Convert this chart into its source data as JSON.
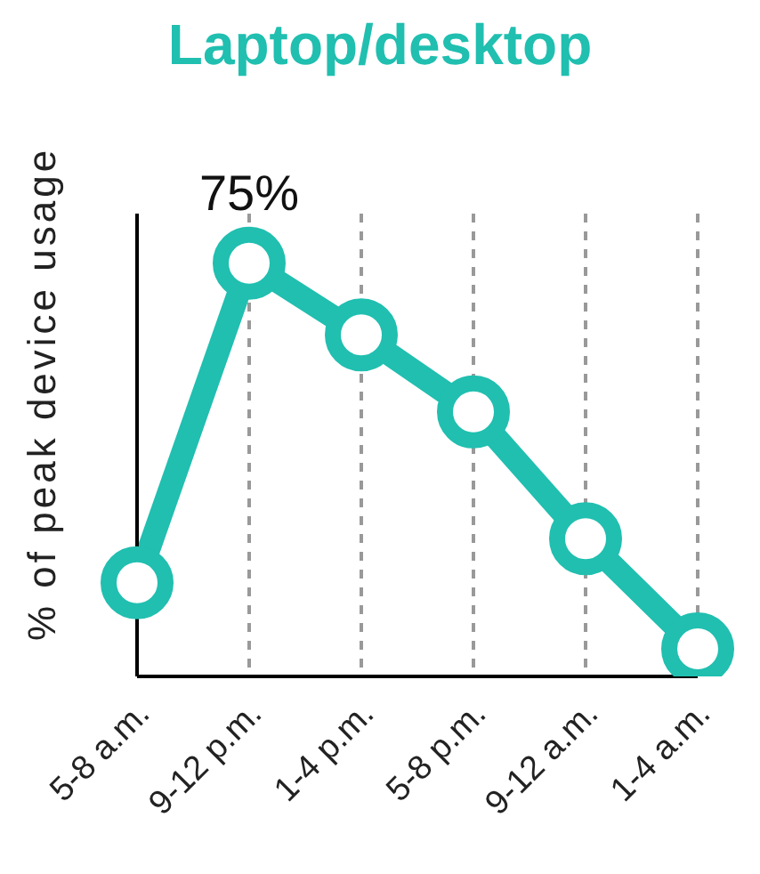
{
  "chart_data": {
    "type": "line",
    "title": "Laptop/desktop",
    "ylabel": "% of peak device usage",
    "categories": [
      "5-8 a.m.",
      "9-12 p.m.",
      "1-4 p.m.",
      "5-8 p.m.",
      "9-12 a.m.",
      "1-4 a.m."
    ],
    "ylim": [
      0,
      84
    ],
    "tick_labels": "x",
    "series": [
      {
        "color": "#20bfb0",
        "values": [
          17,
          75,
          62,
          48,
          25,
          5
        ],
        "value_labels": [
          null,
          "75%",
          null,
          null,
          null,
          null
        ]
      }
    ],
    "grid": "x",
    "marker": "circle",
    "line_style": "solid",
    "legend": false
  }
}
